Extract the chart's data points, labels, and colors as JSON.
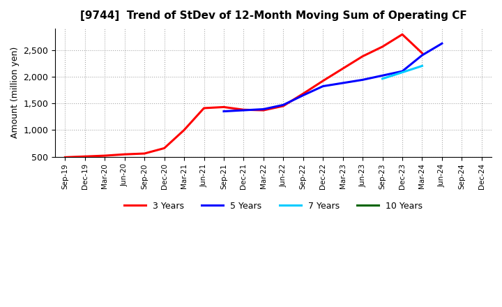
{
  "title": "[9744]  Trend of StDev of 12-Month Moving Sum of Operating CF",
  "ylabel": "Amount (million yen)",
  "background_color": "#ffffff",
  "plot_bg_color": "#ffffff",
  "grid_color": "#aaaaaa",
  "ylim": [
    500,
    2900
  ],
  "yticks": [
    500,
    1000,
    1500,
    2000,
    2500
  ],
  "x_labels": [
    "Sep-19",
    "Dec-19",
    "Mar-20",
    "Jun-20",
    "Sep-20",
    "Dec-20",
    "Mar-21",
    "Jun-21",
    "Sep-21",
    "Dec-21",
    "Mar-22",
    "Jun-22",
    "Sep-22",
    "Dec-22",
    "Mar-23",
    "Jun-23",
    "Sep-23",
    "Dec-23",
    "Mar-24",
    "Jun-24",
    "Sep-24",
    "Dec-24"
  ],
  "series_3y": {
    "label": "3 Years",
    "color": "#ff0000",
    "x": [
      0,
      1,
      2,
      3,
      4,
      5,
      6,
      7,
      8,
      9,
      10,
      11,
      12,
      13,
      14,
      15,
      16,
      17,
      18
    ],
    "y": [
      490,
      505,
      520,
      545,
      560,
      660,
      1000,
      1410,
      1430,
      1380,
      1370,
      1450,
      1680,
      1920,
      2150,
      2380,
      2560,
      2790,
      2440
    ]
  },
  "series_5y": {
    "label": "5 Years",
    "color": "#0000ff",
    "x": [
      8,
      9,
      10,
      11,
      12,
      13,
      14,
      15,
      16,
      17,
      18,
      19
    ],
    "y": [
      1350,
      1370,
      1390,
      1470,
      1650,
      1820,
      1880,
      1940,
      2020,
      2100,
      2400,
      2620
    ]
  },
  "series_7y": {
    "label": "7 Years",
    "color": "#00ccff",
    "x": [
      16,
      17,
      18
    ],
    "y": [
      1960,
      2080,
      2200
    ]
  },
  "series_10y": {
    "label": "10 Years",
    "color": "#006400",
    "x": [],
    "y": []
  }
}
